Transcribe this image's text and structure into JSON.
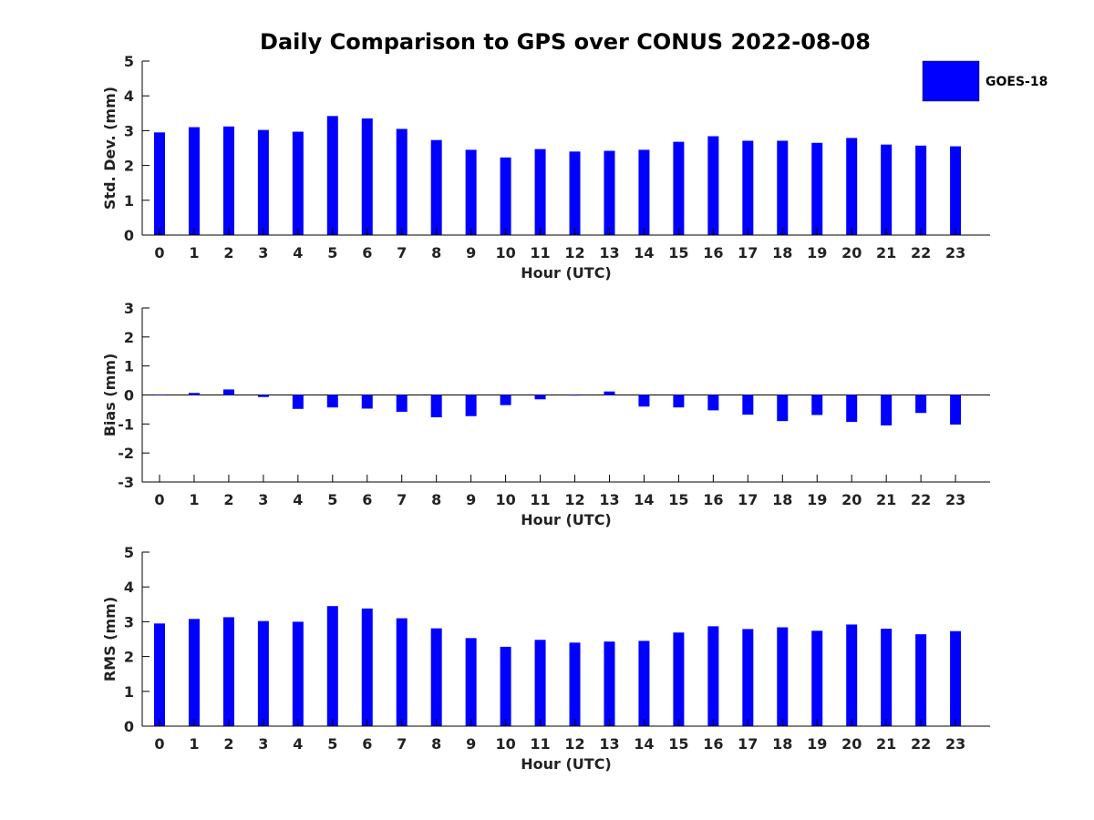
{
  "title": "Daily Comparison to GPS over CONUS 2022-08-08",
  "legend": {
    "label": "GOES-18",
    "color": "#0000ff"
  },
  "chart_data": [
    {
      "type": "bar",
      "id": "std",
      "ylabel": "Std. Dev. (mm)",
      "xlabel": "Hour (UTC)",
      "ylim": [
        0,
        5
      ],
      "yticks": [
        0,
        1,
        2,
        3,
        4,
        5
      ],
      "categories": [
        "0",
        "1",
        "2",
        "3",
        "4",
        "5",
        "6",
        "7",
        "8",
        "9",
        "10",
        "11",
        "12",
        "13",
        "14",
        "15",
        "16",
        "17",
        "18",
        "19",
        "20",
        "21",
        "22",
        "23"
      ],
      "series": [
        {
          "name": "GOES-18",
          "values": [
            2.95,
            3.1,
            3.12,
            3.02,
            2.97,
            3.42,
            3.35,
            3.05,
            2.73,
            2.45,
            2.23,
            2.47,
            2.4,
            2.42,
            2.45,
            2.68,
            2.84,
            2.71,
            2.71,
            2.65,
            2.79,
            2.6,
            2.57,
            2.55
          ]
        }
      ]
    },
    {
      "type": "bar",
      "id": "bias",
      "ylabel": "Bias (mm)",
      "xlabel": "Hour (UTC)",
      "ylim": [
        -3,
        3
      ],
      "yticks": [
        -3,
        -2,
        -1,
        0,
        1,
        2,
        3
      ],
      "zero_line": true,
      "categories": [
        "0",
        "1",
        "2",
        "3",
        "4",
        "5",
        "6",
        "7",
        "8",
        "9",
        "10",
        "11",
        "12",
        "13",
        "14",
        "15",
        "16",
        "17",
        "18",
        "19",
        "20",
        "21",
        "22",
        "23"
      ],
      "series": [
        {
          "name": "GOES-18",
          "values": [
            0.0,
            0.07,
            0.19,
            -0.07,
            -0.48,
            -0.43,
            -0.47,
            -0.58,
            -0.77,
            -0.73,
            -0.35,
            -0.15,
            -0.02,
            0.12,
            -0.4,
            -0.43,
            -0.53,
            -0.68,
            -0.9,
            -0.69,
            -0.93,
            -1.05,
            -0.62,
            -1.02
          ]
        }
      ]
    },
    {
      "type": "bar",
      "id": "rms",
      "ylabel": "RMS (mm)",
      "xlabel": "Hour (UTC)",
      "ylim": [
        0,
        5
      ],
      "yticks": [
        0,
        1,
        2,
        3,
        4,
        5
      ],
      "categories": [
        "0",
        "1",
        "2",
        "3",
        "4",
        "5",
        "6",
        "7",
        "8",
        "9",
        "10",
        "11",
        "12",
        "13",
        "14",
        "15",
        "16",
        "17",
        "18",
        "19",
        "20",
        "21",
        "22",
        "23"
      ],
      "series": [
        {
          "name": "GOES-18",
          "values": [
            2.95,
            3.08,
            3.13,
            3.02,
            3.0,
            3.45,
            3.38,
            3.1,
            2.81,
            2.53,
            2.28,
            2.48,
            2.4,
            2.43,
            2.45,
            2.69,
            2.87,
            2.79,
            2.84,
            2.74,
            2.92,
            2.8,
            2.64,
            2.73
          ]
        }
      ]
    }
  ]
}
